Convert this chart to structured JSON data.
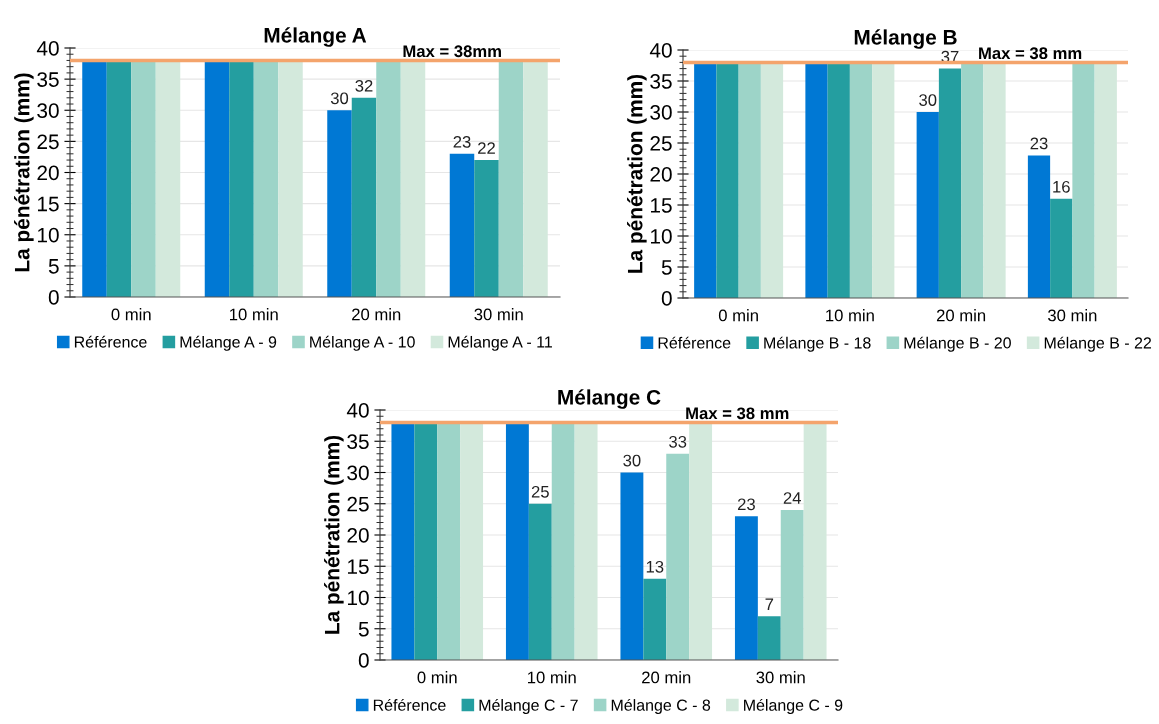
{
  "chart_data": [
    {
      "type": "bar",
      "title": "Mélange A",
      "ylabel": "La pénétration (mm)",
      "categories": [
        "0 min",
        "10 min",
        "20 min",
        "30 min"
      ],
      "series": [
        {
          "name": "Référence",
          "color": "#0078d4",
          "values": [
            38,
            38,
            30,
            23
          ],
          "value_labels": [
            null,
            null,
            "30",
            "23"
          ]
        },
        {
          "name": "Mélange A - 9",
          "color": "#249ea0",
          "values": [
            38,
            38,
            32,
            22
          ],
          "value_labels": [
            null,
            null,
            "32",
            "22"
          ]
        },
        {
          "name": "Mélange A - 10",
          "color": "#9dd4c8",
          "values": [
            38,
            38,
            38,
            38
          ]
        },
        {
          "name": "Mélange A - 11",
          "color": "#d3e9dc",
          "values": [
            38,
            38,
            38,
            38
          ]
        }
      ],
      "ylim": [
        0,
        40
      ],
      "yticks": [
        0,
        5,
        10,
        15,
        20,
        25,
        30,
        35,
        40
      ],
      "grid": "y",
      "legend": "bottom",
      "ref_lines": [
        {
          "axis": "y",
          "value": 38,
          "label": "Max = 38mm",
          "color": "#f4a46c"
        }
      ]
    },
    {
      "type": "bar",
      "title": "Mélange B",
      "ylabel": "La pénétration (mm)",
      "categories": [
        "0 min",
        "10 min",
        "20 min",
        "30 min"
      ],
      "series": [
        {
          "name": "Référence",
          "color": "#0078d4",
          "values": [
            38,
            38,
            30,
            23
          ],
          "value_labels": [
            null,
            null,
            "30",
            "23"
          ]
        },
        {
          "name": "Mélange B - 18",
          "color": "#249ea0",
          "values": [
            38,
            38,
            37,
            16
          ],
          "value_labels": [
            null,
            null,
            "37",
            "16"
          ]
        },
        {
          "name": "Mélange B - 20",
          "color": "#9dd4c8",
          "values": [
            38,
            38,
            38,
            38
          ]
        },
        {
          "name": "Mélange B - 22",
          "color": "#d3e9dc",
          "values": [
            38,
            38,
            38,
            38
          ]
        }
      ],
      "ylim": [
        0,
        40
      ],
      "yticks": [
        0,
        5,
        10,
        15,
        20,
        25,
        30,
        35,
        40
      ],
      "grid": "y",
      "legend": "bottom",
      "ref_lines": [
        {
          "axis": "y",
          "value": 38,
          "label": "Max = 38 mm",
          "color": "#f4a46c"
        }
      ]
    },
    {
      "type": "bar",
      "title": "Mélange C",
      "ylabel": "La pénétration (mm)",
      "categories": [
        "0 min",
        "10 min",
        "20 min",
        "30 min"
      ],
      "series": [
        {
          "name": "Référence",
          "color": "#0078d4",
          "values": [
            38,
            38,
            30,
            23
          ],
          "value_labels": [
            null,
            null,
            "30",
            "23"
          ]
        },
        {
          "name": "Mélange C - 7",
          "color": "#249ea0",
          "values": [
            38,
            25,
            13,
            7
          ],
          "value_labels": [
            null,
            "25",
            "13",
            "7"
          ]
        },
        {
          "name": "Mélange C - 8",
          "color": "#9dd4c8",
          "values": [
            38,
            38,
            33,
            24
          ],
          "value_labels": [
            null,
            null,
            "33",
            "24"
          ]
        },
        {
          "name": "Mélange C - 9",
          "color": "#d3e9dc",
          "values": [
            38,
            38,
            38,
            38
          ]
        }
      ],
      "ylim": [
        0,
        40
      ],
      "yticks": [
        0,
        5,
        10,
        15,
        20,
        25,
        30,
        35,
        40
      ],
      "grid": "y",
      "legend": "bottom",
      "ref_lines": [
        {
          "axis": "y",
          "value": 38,
          "label": "Max = 38 mm",
          "color": "#f4a46c"
        }
      ]
    }
  ]
}
